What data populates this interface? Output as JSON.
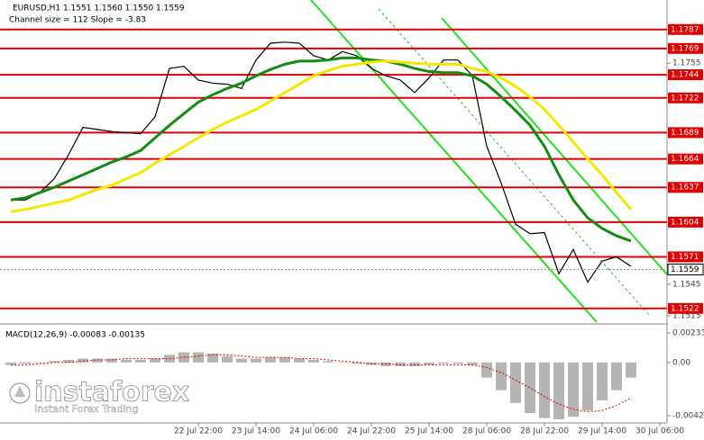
{
  "chart_data": [
    {
      "type": "line",
      "title": "EURUSD,H1  1.1551 1.1560 1.1550 1.1559",
      "subtitle": "Channel size = 112 Slope = -3.83",
      "categories": [
        null,
        null,
        null,
        null,
        null,
        null,
        null,
        null,
        null,
        null,
        null,
        null,
        null,
        "22 Jul 22:00",
        null,
        null,
        null,
        "23 Jul 14:00",
        null,
        null,
        null,
        "24 Jul 06:00",
        null,
        null,
        null,
        "24 Jul 22:00",
        null,
        null,
        null,
        "25 Jul 14:00",
        null,
        null,
        null,
        "28 Jul 06:00",
        null,
        null,
        null,
        "28 Jul 22:00",
        null,
        null,
        null,
        "29 Jul 14:00",
        null,
        null,
        null,
        "30 Jul 06:00"
      ],
      "series": [
        {
          "color": "#000000",
          "values": [
            1.1625,
            1.1625,
            1.1632,
            1.1645,
            1.1668,
            1.1694,
            1.1692,
            1.169,
            1.1689,
            1.1688,
            1.1704,
            1.175,
            1.1752,
            1.1739,
            1.1736,
            1.1735,
            1.1731,
            1.1758,
            1.1774,
            1.1775,
            1.1774,
            1.1762,
            1.1758,
            1.1766,
            1.1762,
            1.175,
            1.1743,
            1.1739,
            1.1727,
            1.1741,
            1.1758,
            1.1758,
            1.1743,
            1.1676,
            1.1641,
            1.1602,
            1.1593,
            1.1594,
            1.1555,
            1.1578,
            1.1547,
            1.1567,
            1.1571,
            1.1562,
            null,
            null
          ]
        },
        {
          "color": "#138a13",
          "values": [
            1.1625,
            1.1627,
            1.1632,
            1.1637,
            1.1643,
            1.1649,
            1.1655,
            1.1661,
            1.1666,
            1.1672,
            1.1684,
            1.1696,
            1.1707,
            1.1718,
            1.1725,
            1.1731,
            1.1736,
            1.1743,
            1.1749,
            1.1754,
            1.1757,
            1.1757,
            1.1758,
            1.176,
            1.176,
            1.1758,
            1.1757,
            1.1754,
            1.175,
            1.1747,
            1.1746,
            1.1746,
            1.1743,
            1.1735,
            1.1723,
            1.171,
            1.1696,
            1.1676,
            1.1649,
            1.1625,
            1.1608,
            1.1598,
            1.1591,
            1.1586,
            null,
            null
          ]
        },
        {
          "color": "#f5e800",
          "values": [
            1.1614,
            1.1616,
            1.1619,
            1.1622,
            1.1625,
            1.163,
            1.1635,
            1.1639,
            1.1645,
            1.1651,
            1.166,
            1.1668,
            1.1676,
            1.1684,
            1.1692,
            1.1699,
            1.1705,
            1.1711,
            1.1719,
            1.1727,
            1.1735,
            1.1743,
            1.1748,
            1.1752,
            1.1754,
            1.1756,
            1.1757,
            1.1756,
            1.1755,
            1.1754,
            1.1754,
            1.1754,
            1.175,
            1.1747,
            1.1741,
            1.1733,
            1.1723,
            1.1711,
            1.1696,
            1.168,
            1.1664,
            1.1649,
            1.1632,
            1.1616,
            null,
            null
          ]
        }
      ],
      "levels": {
        "color": "#e00000",
        "values": [
          1.1787,
          1.1769,
          1.1744,
          1.1722,
          1.1689,
          1.1664,
          1.1637,
          1.1604,
          1.1571,
          1.1522
        ]
      },
      "last_price": 1.1559,
      "ylim": [
        1.1509,
        1.1815
      ],
      "yticks": [
        1.1755,
        1.1545,
        1.1515
      ]
    },
    {
      "type": "macd",
      "title": "MACD(12,26,9) -0.00083 -0.00135",
      "series": [
        {
          "type": "bar",
          "color": "#b4b4b4",
          "values": [
            -0.0002,
            -0.0001,
            0,
            0.0001,
            0.0002,
            0.0003,
            0.0003,
            0.0003,
            0.0002,
            0.0002,
            0.0003,
            0.0006,
            0.0008,
            0.0008,
            0.0007,
            0.0005,
            0.0003,
            0.0003,
            0.0004,
            0.0004,
            0.0003,
            0.0002,
            0.0001,
            0,
            -0.0001,
            -0.0002,
            -0.0003,
            -0.0003,
            -0.0003,
            -0.0002,
            -0.0001,
            -0.0001,
            -0.0002,
            -0.0012,
            -0.0022,
            -0.0032,
            -0.004,
            -0.0044,
            -0.0045,
            -0.0043,
            -0.0038,
            -0.003,
            -0.0022,
            -0.0012,
            null,
            null
          ]
        },
        {
          "type": "line",
          "color": "#e00000",
          "values": [
            -0.0002,
            -0.0002,
            -0.0001,
            0,
            0,
            0.0001,
            0.0002,
            0.0002,
            0.0003,
            0.0003,
            0.0003,
            0.0003,
            0.0004,
            0.0005,
            0.0006,
            0.0006,
            0.0005,
            0.0004,
            0.0004,
            0.0004,
            0.0003,
            0.0003,
            0.0002,
            0.0001,
            0,
            -0.0001,
            -0.0001,
            -0.0002,
            -0.0002,
            -0.0002,
            -0.0002,
            -0.0002,
            -0.0002,
            -0.0004,
            -0.0008,
            -0.0014,
            -0.002,
            -0.0027,
            -0.0033,
            -0.0037,
            -0.0039,
            -0.0038,
            -0.0034,
            -0.0028,
            null,
            null
          ]
        }
      ],
      "ylim": [
        -0.00478,
        0.0029
      ],
      "yticks": [
        0.00233,
        {
          "value": 0,
          "label": "0.00"
        },
        -0.00421
      ]
    }
  ],
  "watermark": {
    "brand": "instaforex",
    "tagline": "Instant Forex Trading"
  }
}
